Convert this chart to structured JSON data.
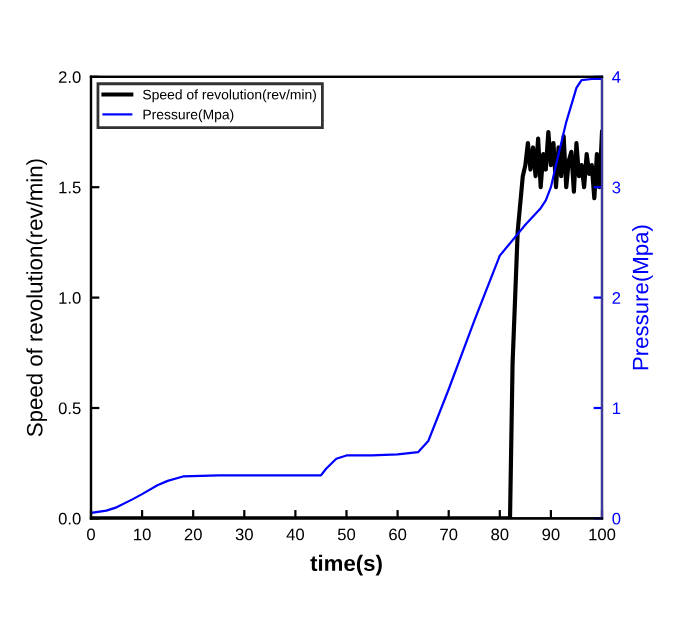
{
  "chart_data": {
    "type": "line",
    "xlabel": "time(s)",
    "ylabel": "Speed of revolution(rev/min)",
    "y2label": "Pressure(Mpa)",
    "xlim": [
      0,
      100
    ],
    "xticks": [
      0,
      10,
      20,
      30,
      40,
      50,
      60,
      70,
      80,
      90,
      100
    ],
    "ylim": [
      0,
      2
    ],
    "yticks": [
      {
        "value": 0,
        "label": "0.0"
      },
      0.5,
      {
        "value": 1,
        "label": "1.0"
      },
      1.5,
      {
        "value": 2,
        "label": "2.0"
      }
    ],
    "y2lim": [
      0,
      4
    ],
    "y2ticks": [
      0,
      1,
      2,
      3,
      4
    ],
    "legend": "top left",
    "grid": false,
    "marker": "none",
    "line_style": "solid",
    "series": [
      {
        "name": "Speed of revolution(rev/min)",
        "color": "#000000",
        "x": [
          0,
          82,
          82.5,
          83.5,
          84.5,
          85,
          85.5,
          86,
          86.5,
          87,
          87.5,
          88,
          88.5,
          89,
          89.5,
          90,
          90.5,
          91,
          91.5,
          92,
          92.5,
          93,
          93.5,
          94,
          94.5,
          95,
          95.5,
          96,
          96.5,
          97,
          97.5,
          98,
          98.5,
          99,
          99.5,
          100
        ],
        "values": [
          0,
          0,
          0.7,
          1.3,
          1.55,
          1.6,
          1.7,
          1.58,
          1.68,
          1.55,
          1.72,
          1.5,
          1.65,
          1.58,
          1.75,
          1.6,
          1.7,
          1.5,
          1.68,
          1.55,
          1.73,
          1.5,
          1.62,
          1.66,
          1.48,
          1.7,
          1.55,
          1.6,
          1.5,
          1.65,
          1.56,
          1.6,
          1.45,
          1.65,
          1.5,
          1.75
        ]
      },
      {
        "name": "Pressure(Mpa)",
        "color": "#0000ff",
        "axis": "y2",
        "x": [
          0,
          3,
          5,
          8,
          10,
          13,
          15,
          18,
          25,
          35,
          45,
          46,
          48,
          50,
          55,
          60,
          64,
          66,
          70,
          75,
          80,
          85,
          88,
          89,
          90,
          91,
          93,
          95,
          96,
          98,
          100
        ],
        "values": [
          0.05,
          0.07,
          0.1,
          0.17,
          0.22,
          0.3,
          0.34,
          0.38,
          0.39,
          0.39,
          0.39,
          0.45,
          0.54,
          0.57,
          0.57,
          0.58,
          0.6,
          0.7,
          1.17,
          1.79,
          2.38,
          2.66,
          2.81,
          2.88,
          3.0,
          3.2,
          3.59,
          3.9,
          3.97,
          3.98,
          3.98
        ]
      }
    ]
  }
}
